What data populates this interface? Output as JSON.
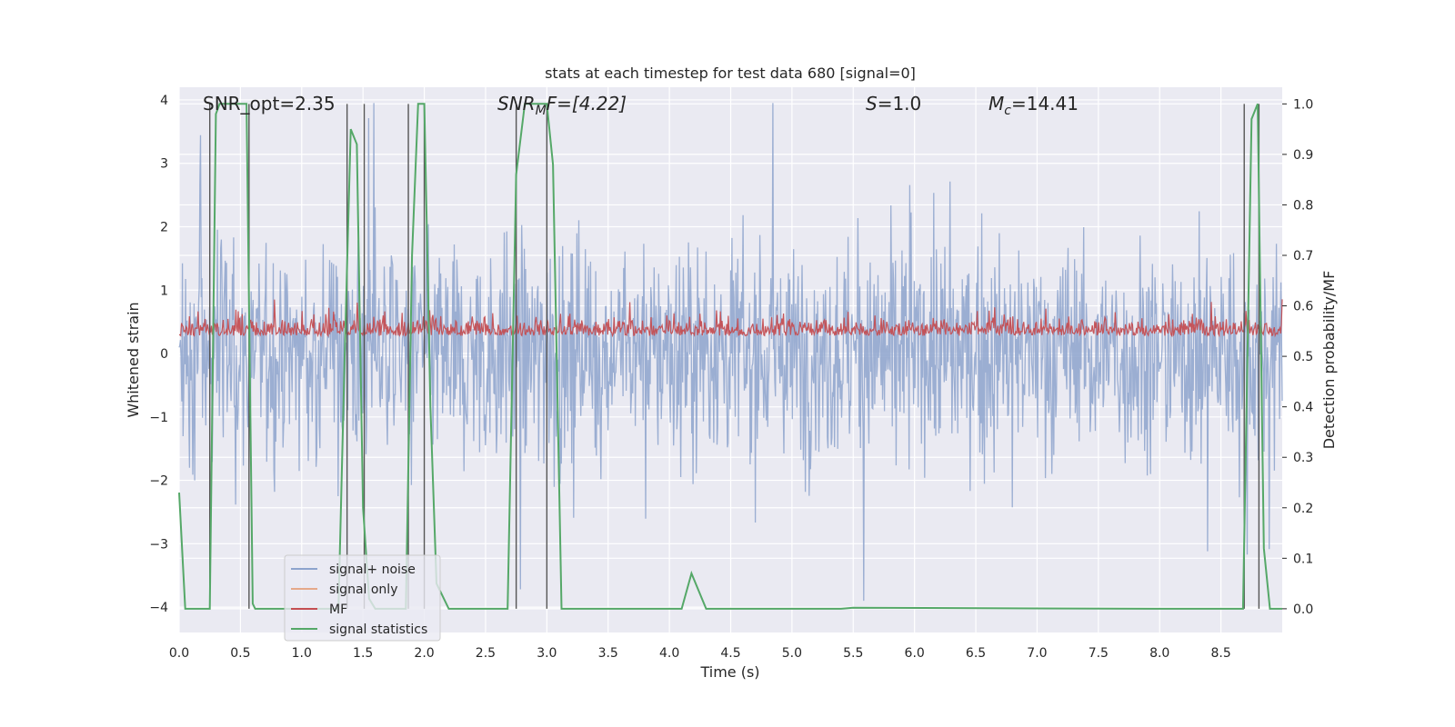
{
  "chart_data": {
    "type": "line",
    "title": "stats at each timestep for test data 680 [signal=0]",
    "xlabel": "Time (s)",
    "ylabel": "Whitened strain",
    "y2label": "Detection probability/MF",
    "xlim": [
      0.0,
      9.0
    ],
    "ylim": [
      -4.4,
      4.2
    ],
    "y2lim": [
      -0.047,
      1.033
    ],
    "x_ticks": [
      "0.0",
      "0.5",
      "1.0",
      "1.5",
      "2.0",
      "2.5",
      "3.0",
      "3.5",
      "4.0",
      "4.5",
      "5.0",
      "5.5",
      "6.0",
      "6.5",
      "7.0",
      "7.5",
      "8.0",
      "8.5"
    ],
    "y_ticks": [
      "4",
      "3",
      "2",
      "1",
      "0",
      "−1",
      "−2",
      "−3",
      "−4"
    ],
    "y2_ticks": [
      "1.0",
      "0.9",
      "0.8",
      "0.7",
      "0.6",
      "0.5",
      "0.4",
      "0.3",
      "0.2",
      "0.1",
      "0.0"
    ],
    "grid": true,
    "legend_position": "lower-left",
    "annotations": {
      "snr_opt": "SNR_opt=2.35",
      "snr_mf_var": "SNR",
      "snr_mf_sub": "M",
      "snr_mf_rest": "F=[4.22]",
      "s_var": "S",
      "s_rest": "=1.0",
      "mc_var": "M",
      "mc_sub": "c",
      "mc_rest": "=14.41"
    },
    "series": [
      {
        "name": "signal+ noise",
        "color": "#8da3cd",
        "description_level": "noise band spanning roughly -2 to 2 whitened strain",
        "band": [
          -2.0,
          2.0
        ]
      },
      {
        "name": "signal only",
        "color": "#e5a98a",
        "values": []
      },
      {
        "name": "MF",
        "color": "#c44e52",
        "band": [
          0.0,
          0.7
        ]
      },
      {
        "name": "signal statistics",
        "color": "#55a868",
        "axis": "right",
        "x": [
          0.0,
          0.05,
          0.25,
          0.3,
          0.33,
          0.55,
          0.6,
          0.62,
          0.7,
          0.9,
          1.0,
          1.3,
          1.35,
          1.4,
          1.45,
          1.5,
          1.55,
          1.6,
          1.7,
          1.85,
          1.9,
          1.95,
          2.0,
          2.05,
          2.1,
          2.2,
          2.6,
          2.68,
          2.75,
          2.82,
          2.85,
          3.0,
          3.05,
          3.12,
          3.2,
          4.0,
          4.1,
          4.18,
          4.3,
          4.5,
          5.4,
          5.5,
          8.0,
          8.68,
          8.75,
          8.8,
          8.85,
          8.9,
          9.0
        ],
        "values": [
          0.23,
          0.0,
          0.0,
          0.98,
          1.0,
          1.0,
          0.01,
          0.0,
          0.0,
          0.0,
          0.0,
          0.0,
          0.5,
          0.95,
          0.92,
          0.2,
          0.02,
          0.0,
          0.0,
          0.0,
          0.7,
          1.0,
          1.0,
          0.4,
          0.05,
          0.0,
          0.0,
          0.0,
          0.86,
          1.0,
          1.0,
          1.0,
          0.88,
          0.0,
          0.0,
          0.0,
          0.0,
          0.07,
          0.0,
          0.0,
          0.0,
          0.002,
          0.0,
          0.0,
          0.97,
          1.0,
          0.12,
          0.0,
          0.0
        ]
      }
    ],
    "vertical_markers": [
      0.25,
      0.57,
      1.37,
      1.51,
      1.87,
      2.0,
      2.75,
      3.0,
      8.69,
      8.81
    ],
    "legend": [
      "signal+ noise",
      "signal only",
      "MF",
      "signal statistics"
    ]
  }
}
